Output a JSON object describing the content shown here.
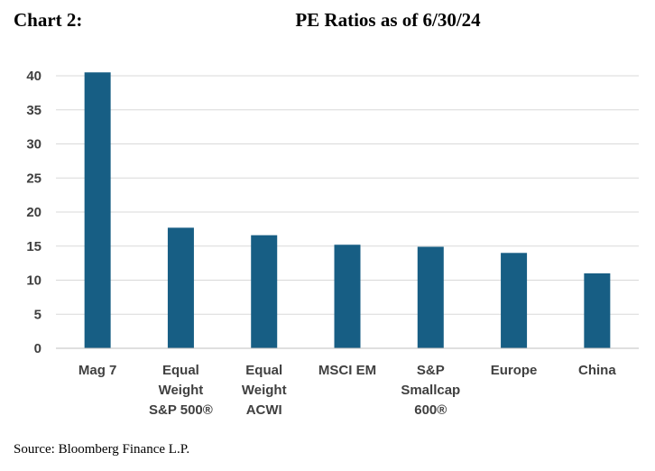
{
  "header": {
    "chart_label": "Chart 2:",
    "title": "PE Ratios as of 6/30/24"
  },
  "footer": {
    "source": "Source: Bloomberg Finance L.P."
  },
  "colors": {
    "bar": "#175e84",
    "grid": "#d9d9d9",
    "axis": "#bfbfbf"
  },
  "chart_data": {
    "type": "bar",
    "title": "PE Ratios as of 6/30/24",
    "xlabel": "",
    "ylabel": "",
    "categories": [
      [
        "Mag 7"
      ],
      [
        "Equal",
        "Weight",
        "S&P 500®"
      ],
      [
        "Equal",
        "Weight",
        "ACWI"
      ],
      [
        "MSCI EM"
      ],
      [
        "S&P",
        "Smallcap",
        "600®"
      ],
      [
        "Europe"
      ],
      [
        "China"
      ]
    ],
    "values": [
      40.5,
      17.7,
      16.6,
      15.2,
      14.9,
      14.0,
      11.0
    ],
    "ylim": [
      0,
      40
    ],
    "yticks": [
      0,
      5,
      10,
      15,
      20,
      25,
      30,
      35,
      40
    ],
    "grid": true,
    "legend": "none"
  }
}
